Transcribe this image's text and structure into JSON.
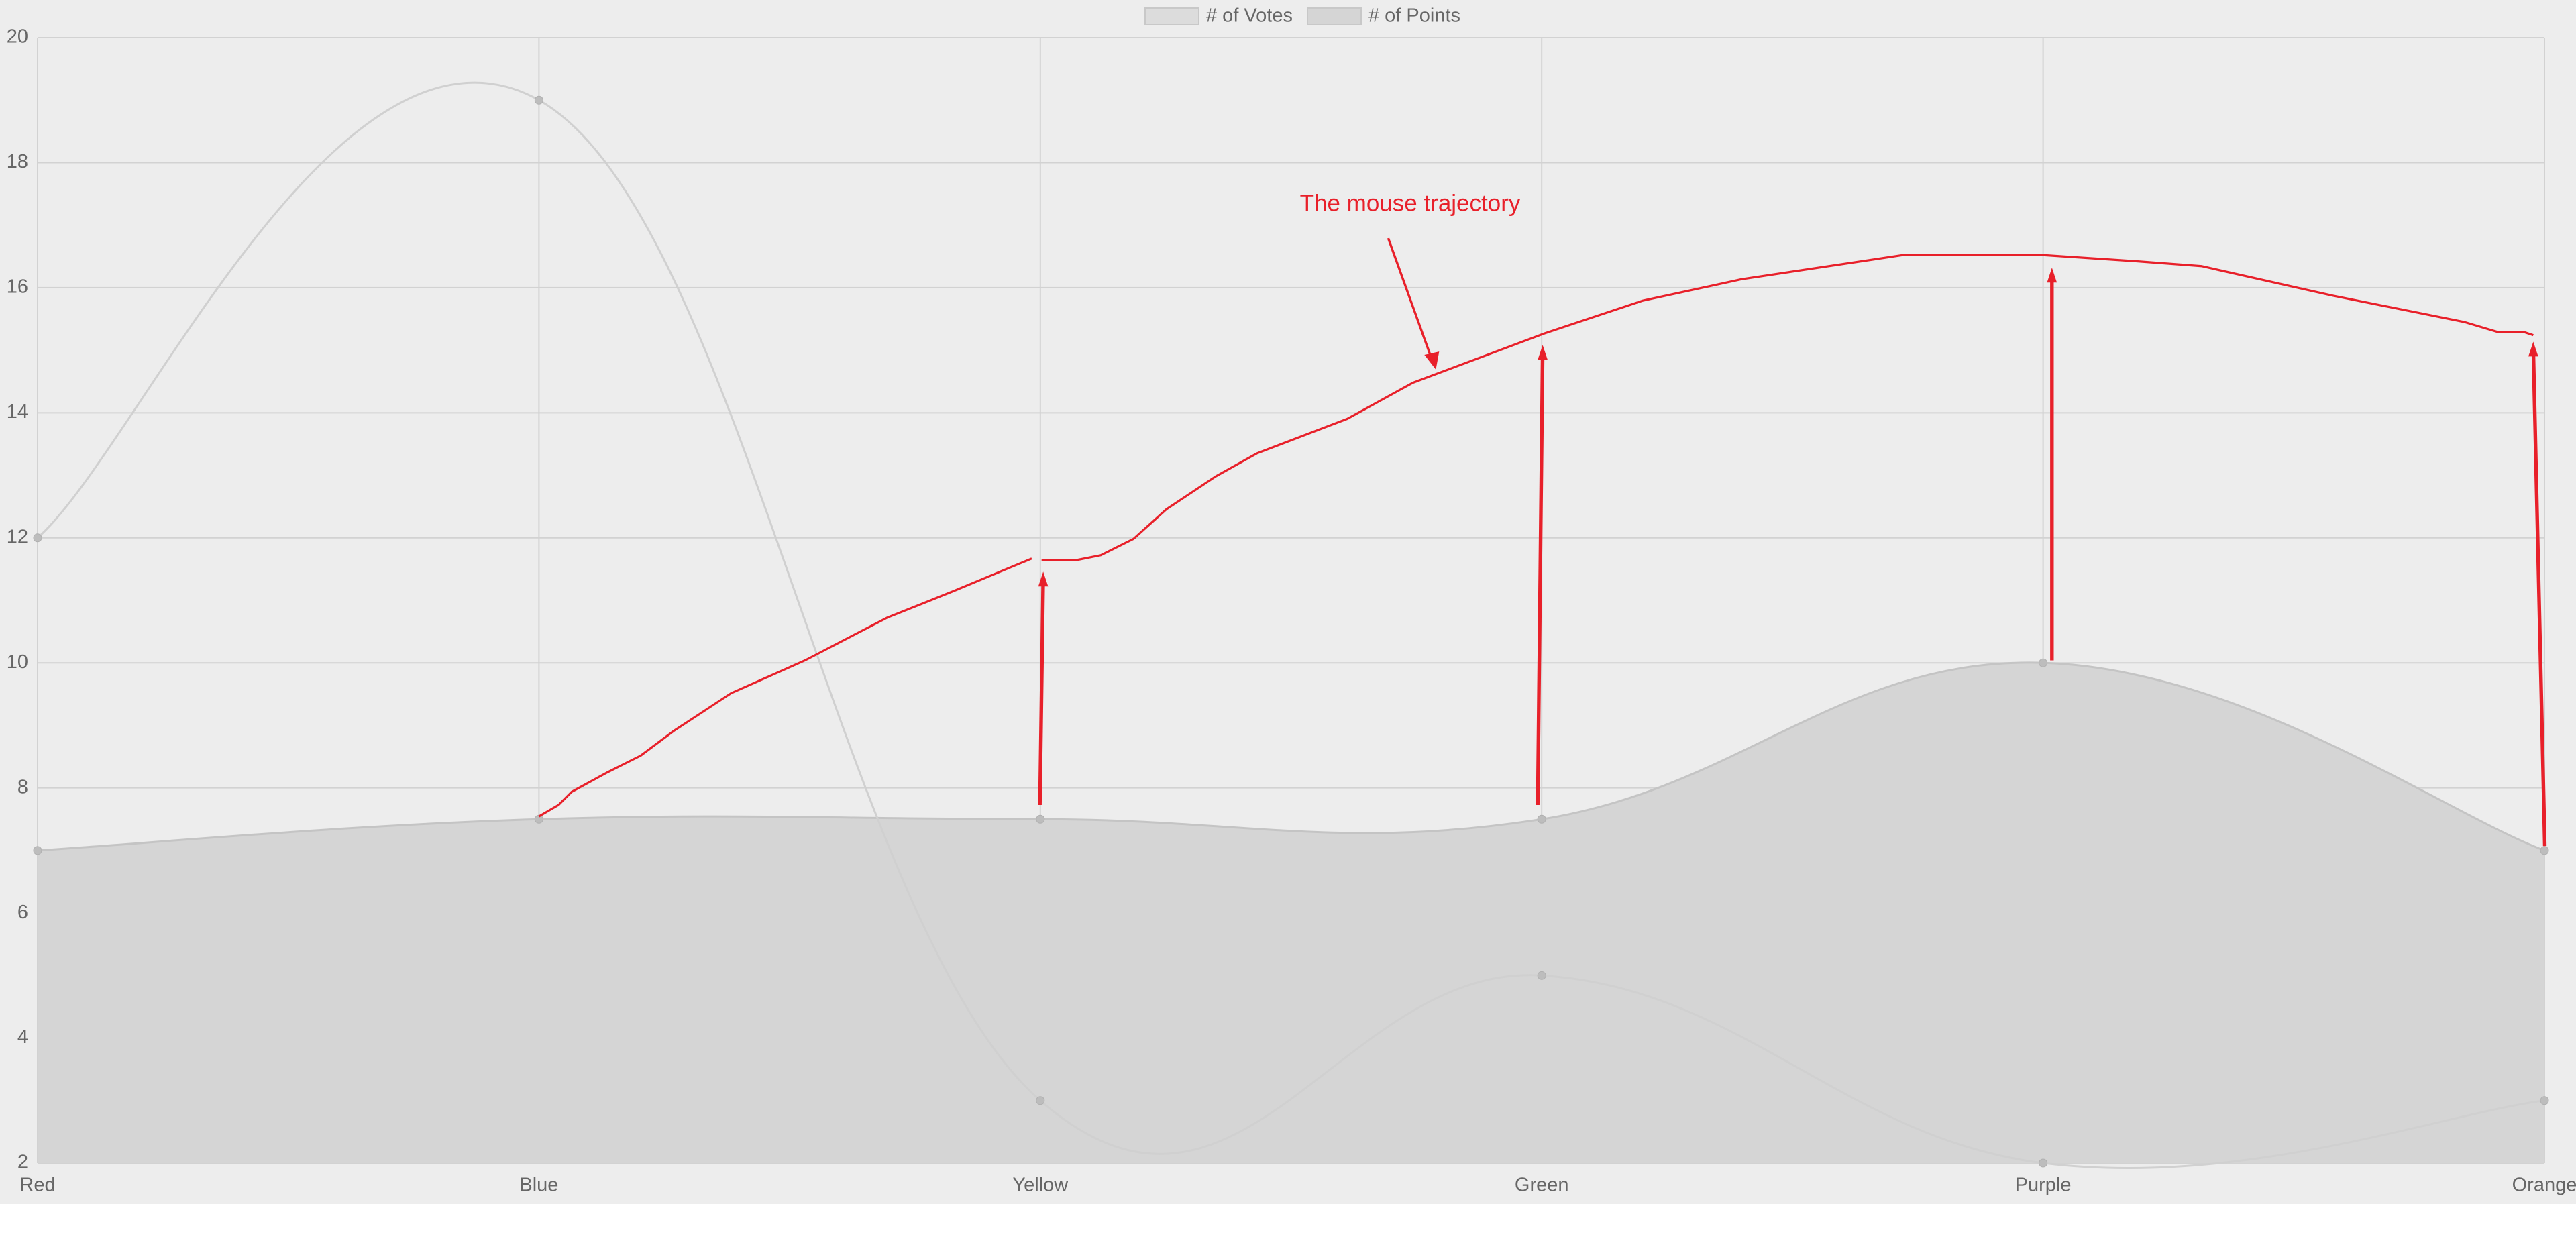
{
  "chart_data": {
    "type": "line",
    "categories": [
      "Red",
      "Blue",
      "Yellow",
      "Green",
      "Purple",
      "Orange"
    ],
    "series": [
      {
        "name": "# of Votes",
        "color": "#d0d0d0",
        "fill": false,
        "values": [
          12,
          19,
          3,
          5,
          2,
          3
        ]
      },
      {
        "name": "# of Points",
        "color": "#c4c4c4",
        "fill": true,
        "fill_color": "#d5d5d5",
        "values": [
          7,
          7.5,
          7.5,
          7.5,
          10,
          7
        ]
      }
    ],
    "ylim": [
      2,
      20
    ],
    "yticks": [
      2,
      4,
      6,
      8,
      10,
      12,
      14,
      16,
      18,
      20
    ],
    "grid": true,
    "legend": "top",
    "annotation": "The mouse trajectory"
  }
}
